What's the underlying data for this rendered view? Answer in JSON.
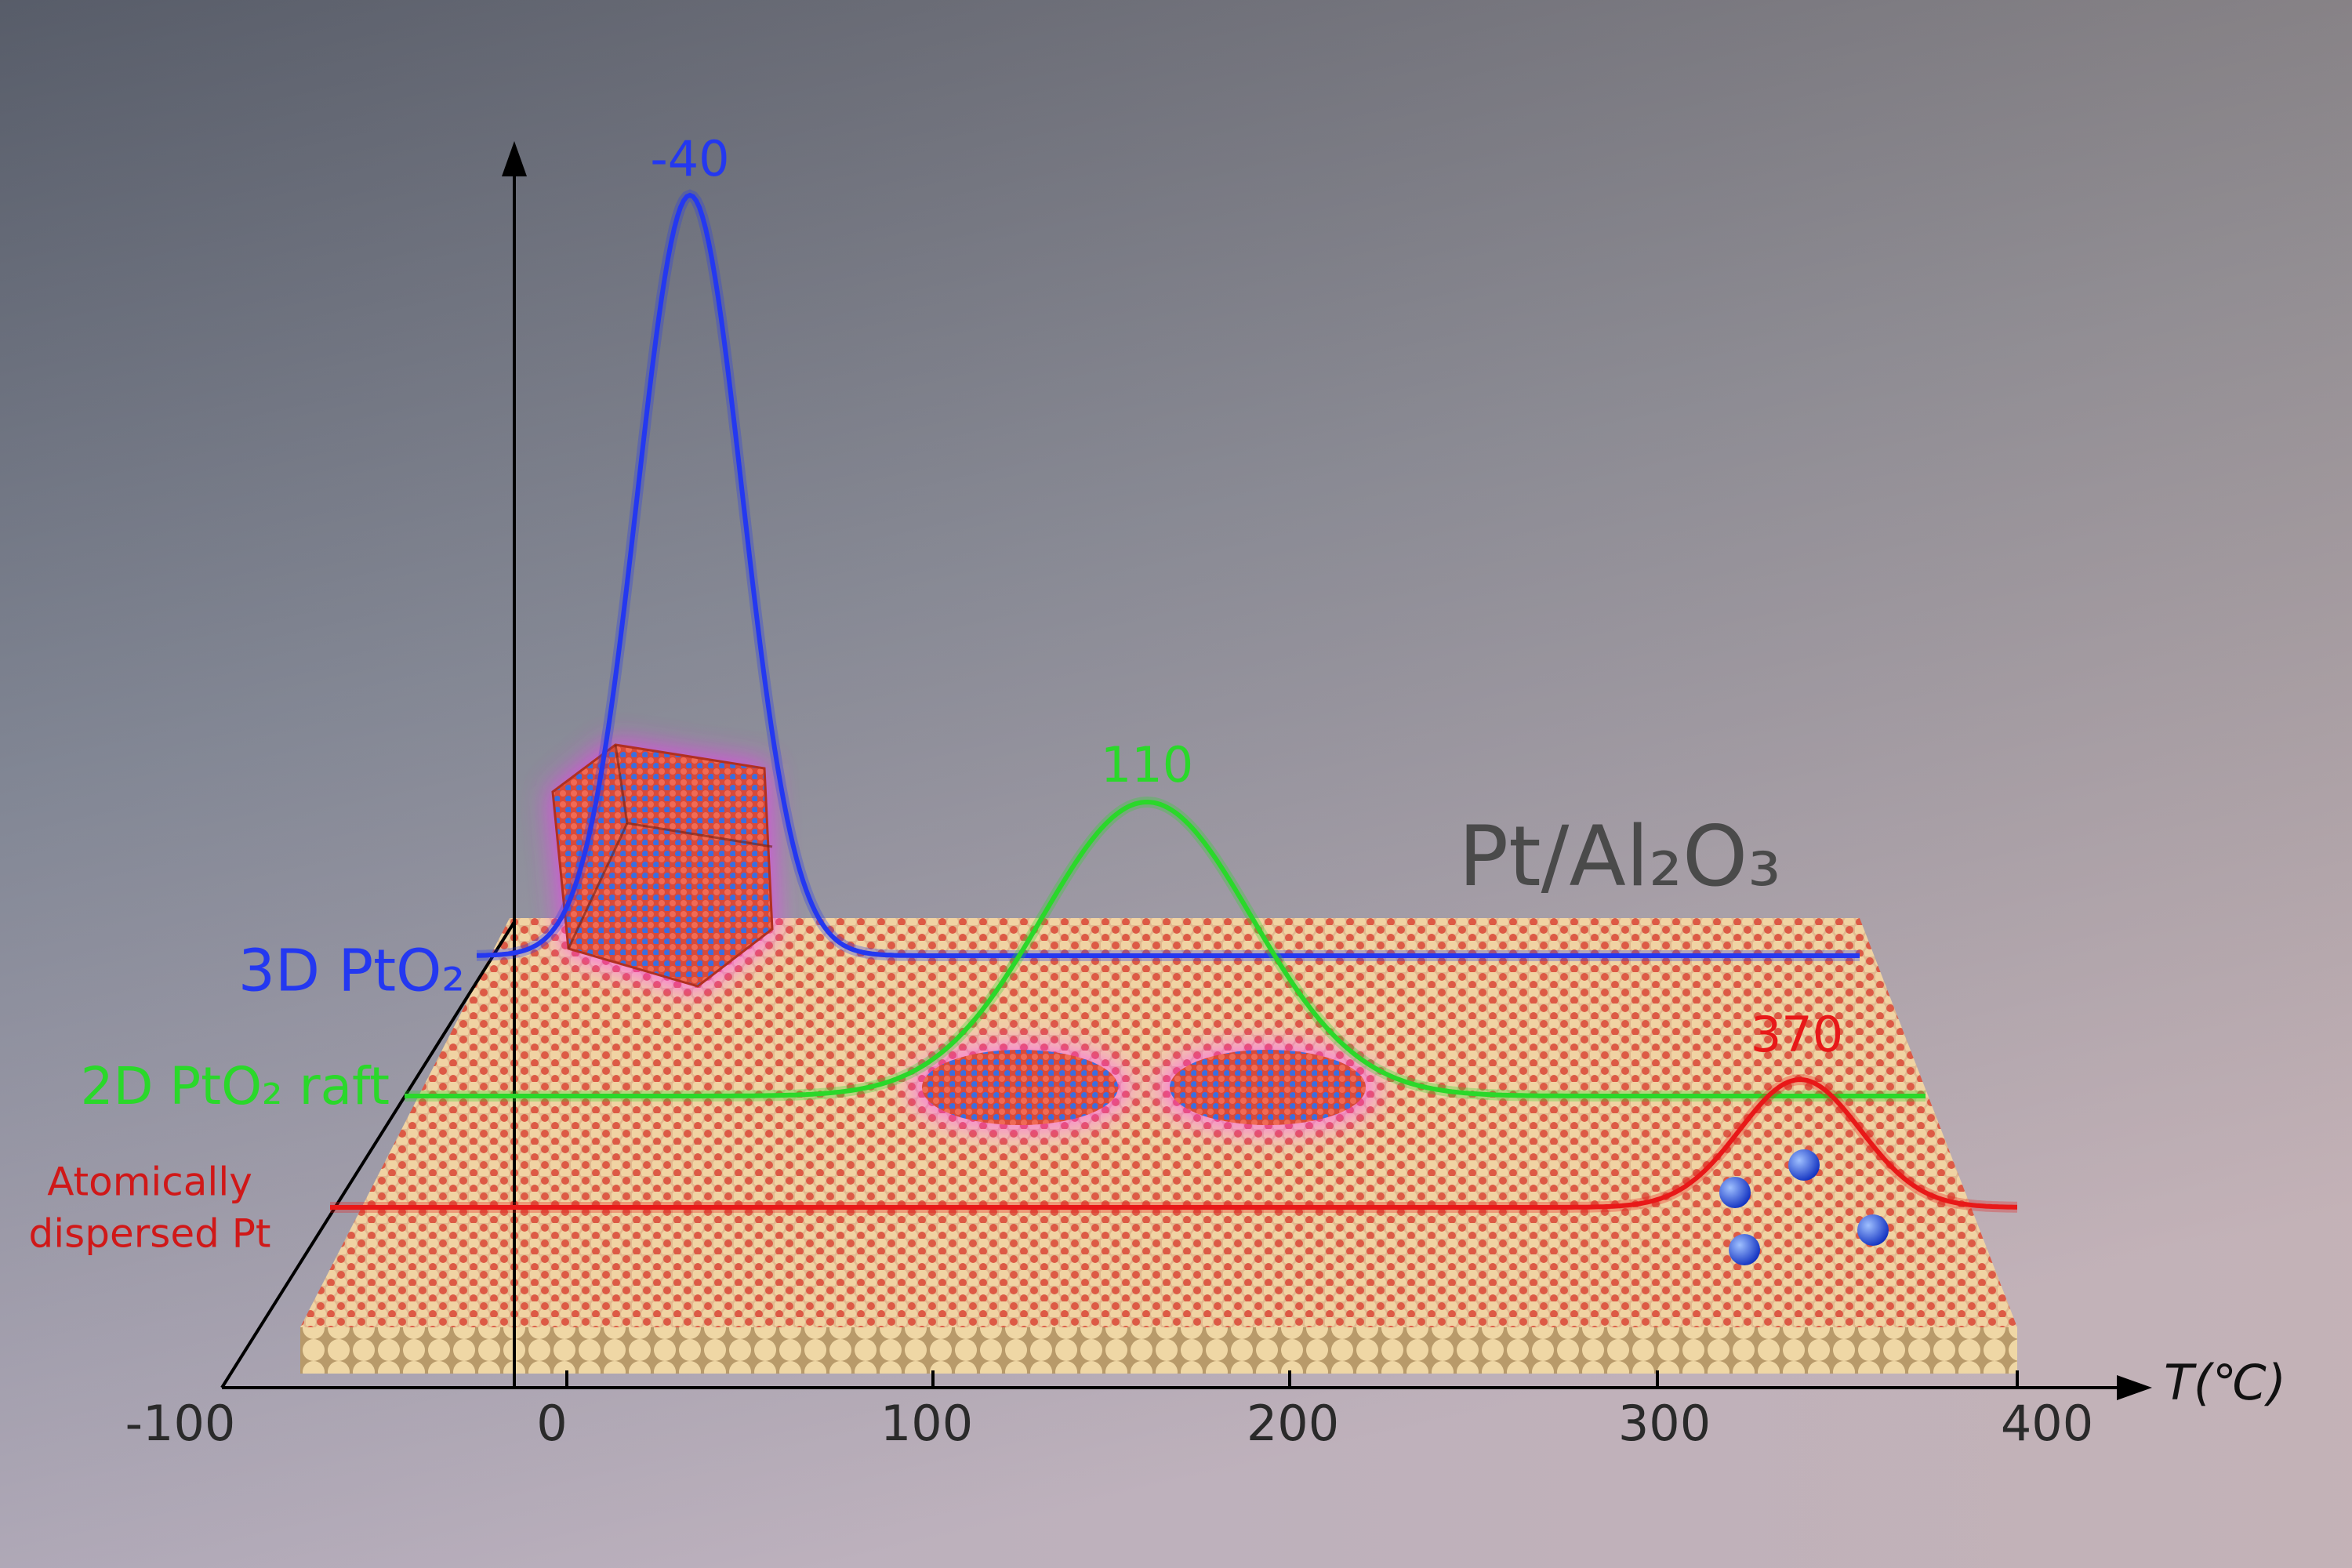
{
  "title": "Pt/Al₂O₃",
  "x_axis": {
    "label": "T(℃)",
    "ticks": [
      -100,
      0,
      100,
      200,
      300,
      400
    ]
  },
  "series": [
    {
      "name": "3D PtO₂",
      "peak": -40,
      "color": "#2438f0"
    },
    {
      "name": "2D PtO₂ raft",
      "peak": 110,
      "color": "#2ad82a"
    },
    {
      "name_lines": [
        "Atomically",
        "dispersed Pt"
      ],
      "peak": 370,
      "color": "#e81818"
    }
  ]
}
